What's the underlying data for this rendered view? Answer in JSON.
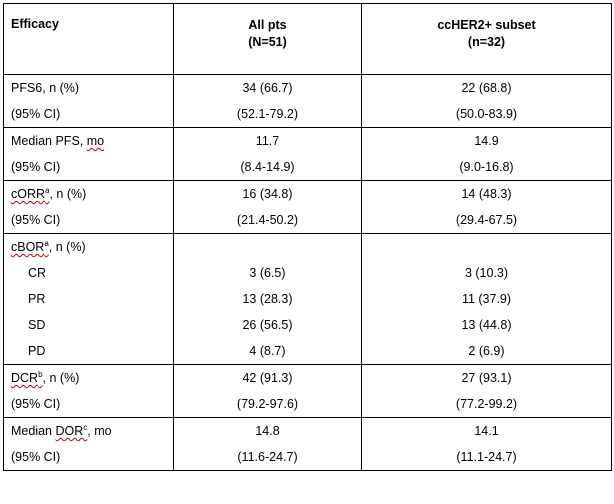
{
  "header": {
    "label": "Efficacy",
    "col2_title": "All pts",
    "col2_n": "(N=51)",
    "col3_title": "ccHER2+ subset",
    "col3_n": "(n=32)"
  },
  "rows": {
    "pfs6": {
      "label": "PFS6, n (%)",
      "ci_label": "(95% CI)",
      "all": "34 (66.7)",
      "all_ci": "(52.1-79.2)",
      "sub": "22 (68.8)",
      "sub_ci": "(50.0-83.9)"
    },
    "median_pfs": {
      "label_pre": "Median PFS, ",
      "label_unit": "mo",
      "ci_label": "(95% CI)",
      "all": "11.7",
      "all_ci": "(8.4-14.9)",
      "sub": "14.9",
      "sub_ci": "(9.0-16.8)"
    },
    "corr": {
      "label_main": "cORR",
      "label_sup": "a",
      "label_post": ", n (%)",
      "ci_label": "(95% CI)",
      "all": "16 (34.8)",
      "all_ci": "(21.4-50.2)",
      "sub": "14 (48.3)",
      "sub_ci": "(29.4-67.5)"
    },
    "cbor": {
      "label_main": "cBOR",
      "label_sup": "a",
      "label_post": ", n (%)",
      "items": [
        {
          "label": "CR",
          "all": "3 (6.5)",
          "sub": "3 (10.3)"
        },
        {
          "label": "PR",
          "all": "13 (28.3)",
          "sub": "11 (37.9)"
        },
        {
          "label": "SD",
          "all": "26 (56.5)",
          "sub": "13 (44.8)"
        },
        {
          "label": "PD",
          "all": "4 (8.7)",
          "sub": "2 (6.9)"
        }
      ]
    },
    "dcr": {
      "label_main": "DCR",
      "label_sup": "b",
      "label_post": ", n (%)",
      "ci_label": "(95% CI)",
      "all": "42 (91.3)",
      "all_ci": "(79.2-97.6)",
      "sub": "27 (93.1)",
      "sub_ci": "(77.2-99.2)"
    },
    "median_dor": {
      "label_pre": "Median ",
      "label_main": "DOR",
      "label_sup": "c",
      "label_post": ", mo",
      "ci_label": "(95% CI)",
      "all": "14.8",
      "all_ci": "(11.6-24.7)",
      "sub": "14.1",
      "sub_ci": "(11.1-24.7)"
    }
  }
}
